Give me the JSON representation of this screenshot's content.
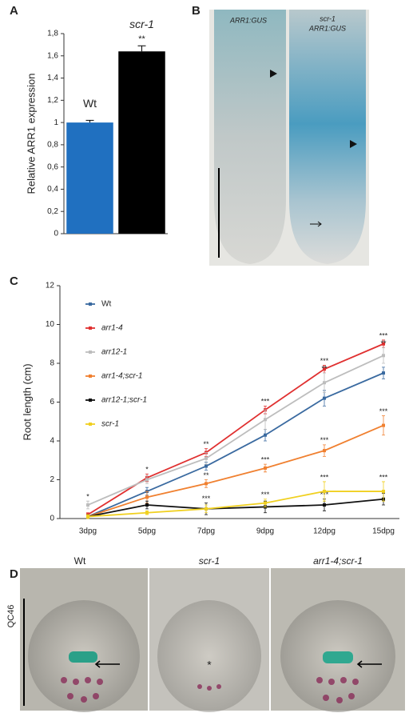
{
  "panels": [
    "A",
    "B",
    "C",
    "D"
  ],
  "chart_data": [
    {
      "type": "bar",
      "ylabel": "Relative ARR1 expression",
      "categories": [
        "Wt",
        "scr-1"
      ],
      "values": [
        1,
        1.64
      ],
      "errors": [
        0.02,
        0.05
      ],
      "colors": [
        "#2070c0",
        "#000000"
      ],
      "significance": [
        null,
        "**"
      ],
      "ylim": [
        0,
        1.8
      ],
      "yticks": [
        0,
        {
          "value": 0.2,
          "label": "0,2"
        },
        {
          "value": 0.4,
          "label": "0,4"
        },
        {
          "value": 0.6,
          "label": "0,6"
        },
        {
          "value": 0.8,
          "label": "0,8"
        },
        1,
        {
          "value": 1.2,
          "label": "1,2"
        },
        {
          "value": 1.4,
          "label": "1,4"
        },
        {
          "value": 1.6,
          "label": "1,6"
        },
        {
          "value": 1.8,
          "label": "1,8"
        }
      ]
    },
    {
      "type": "line",
      "ylabel": "Root length (cm)",
      "categories": [
        "3dpg",
        "5dpg",
        "7dpg",
        "9dpg",
        "12dpg",
        "15dpg"
      ],
      "ylim": [
        0,
        12
      ],
      "yticks": [
        0,
        2,
        4,
        6,
        8,
        10,
        12
      ],
      "series": [
        {
          "name": "Wt",
          "color": "#3a6aa0",
          "values": [
            0.1,
            1.4,
            2.7,
            4.3,
            6.2,
            7.5
          ],
          "errors": [
            0.1,
            0.2,
            0.2,
            0.3,
            0.4,
            0.3
          ],
          "significance": [
            null,
            null,
            null,
            null,
            null,
            null
          ]
        },
        {
          "name": "arr1-4",
          "color": "#e03030",
          "values": [
            0.2,
            2.1,
            3.4,
            5.6,
            7.7,
            9.0
          ],
          "errors": [
            0.1,
            0.2,
            0.2,
            0.2,
            0.2,
            0.2
          ],
          "significance": [
            null,
            "*",
            "**",
            "***",
            "***",
            "***"
          ]
        },
        {
          "name": "arr12-1",
          "color": "#bdbdbd",
          "values": [
            0.7,
            2.0,
            3.1,
            5.1,
            7.0,
            8.4
          ],
          "errors": [
            0.2,
            0.2,
            0.3,
            0.5,
            0.5,
            0.4
          ],
          "significance": [
            "*",
            null,
            null,
            null,
            "**",
            "**"
          ]
        },
        {
          "name": "arr1-4;scr-1",
          "color": "#f08030",
          "values": [
            0.1,
            1.1,
            1.8,
            2.6,
            3.5,
            4.8
          ],
          "errors": [
            0.1,
            0.3,
            0.2,
            0.2,
            0.3,
            0.5
          ],
          "significance": [
            null,
            null,
            "**",
            "***",
            "***",
            "***"
          ]
        },
        {
          "name": "arr12-1;scr-1",
          "color": "#111111",
          "values": [
            0.1,
            0.7,
            0.5,
            0.6,
            0.7,
            1.0
          ],
          "errors": [
            0.1,
            0.2,
            0.3,
            0.3,
            0.3,
            0.3
          ],
          "significance": [
            null,
            null,
            "***",
            null,
            "***",
            null
          ]
        },
        {
          "name": "scr-1",
          "color": "#f0d020",
          "values": [
            0.1,
            0.3,
            0.5,
            0.8,
            1.4,
            1.4
          ],
          "errors": [
            0.1,
            0.1,
            0.2,
            0.2,
            0.5,
            0.5
          ],
          "significance": [
            null,
            null,
            null,
            "***",
            "***",
            "***"
          ]
        }
      ]
    }
  ],
  "images": {
    "B": {
      "left": "ARR1:GUS",
      "right": [
        "scr-1",
        "ARR1:GUS"
      ]
    },
    "D": {
      "labels": [
        "Wt",
        "scr-1",
        "arr1-4;scr-1"
      ],
      "side": "QC46"
    }
  }
}
